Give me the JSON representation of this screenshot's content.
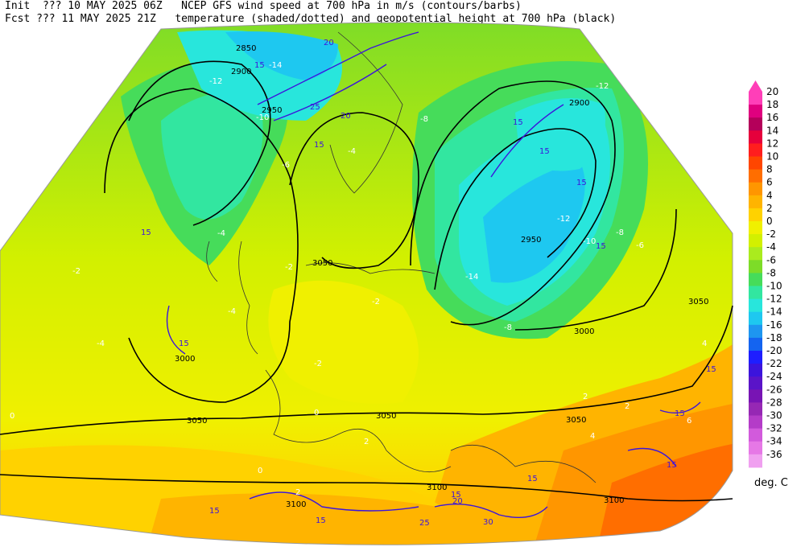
{
  "header": {
    "line1_left": "Init  ??? 10 MAY 2025 06Z",
    "line1_right": "NCEP GFS wind speed at 700 hPa in m/s (contours/barbs)",
    "line2_left": "Fcst ??? 11 MAY 2025 21Z",
    "line2_right": "temperature (shaded/dotted) and geopotential height at 700 hPa (black)"
  },
  "colorbar": {
    "unit": "deg. C",
    "levels": [
      "20",
      "18",
      "16",
      "14",
      "12",
      "10",
      "8",
      "6",
      "4",
      "2",
      "0",
      "-2",
      "-4",
      "-6",
      "-8",
      "-10",
      "-12",
      "-14",
      "-16",
      "-18",
      "-20",
      "-22",
      "-24",
      "-26",
      "-28",
      "-30",
      "-32",
      "-34",
      "-36"
    ],
    "colors": [
      "#ff3fb8",
      "#e0007f",
      "#b4005a",
      "#e6003c",
      "#ff1e1e",
      "#ff4600",
      "#ff6e00",
      "#ff9600",
      "#ffb400",
      "#ffd200",
      "#f0f000",
      "#d2f000",
      "#aaeb1e",
      "#7ddc28",
      "#46dc5a",
      "#32e6a0",
      "#28e6dc",
      "#1ec8f0",
      "#1e96f0",
      "#1464f0",
      "#1e1eff",
      "#3c14dc",
      "#5a14c8",
      "#7814b4",
      "#9628b4",
      "#b43cc8",
      "#d25adc",
      "#e678e6",
      "#f0a0f0"
    ]
  },
  "map_labels": {
    "height": [
      "2850",
      "2900",
      "2950",
      "3050",
      "3000",
      "2900",
      "2950",
      "3050",
      "3000",
      "3050",
      "3050",
      "3050",
      "3100",
      "3100",
      "3100"
    ],
    "wind": [
      "20",
      "15",
      "25",
      "20",
      "15",
      "15",
      "15",
      "15",
      "15",
      "15",
      "15",
      "15",
      "15",
      "15",
      "20",
      "15",
      "25",
      "30",
      "15",
      "15",
      "15"
    ],
    "temp": [
      "-14",
      "-12",
      "-10",
      "-8",
      "-4",
      "-6",
      "-4",
      "-2",
      "-2",
      "-2",
      "-4",
      "-4",
      "-2",
      "0",
      "-12",
      "-10",
      "-8",
      "-12",
      "-14",
      "-8",
      "-6",
      "0",
      "2",
      "2",
      "4",
      "0",
      "2",
      "2",
      "4",
      "6"
    ]
  }
}
